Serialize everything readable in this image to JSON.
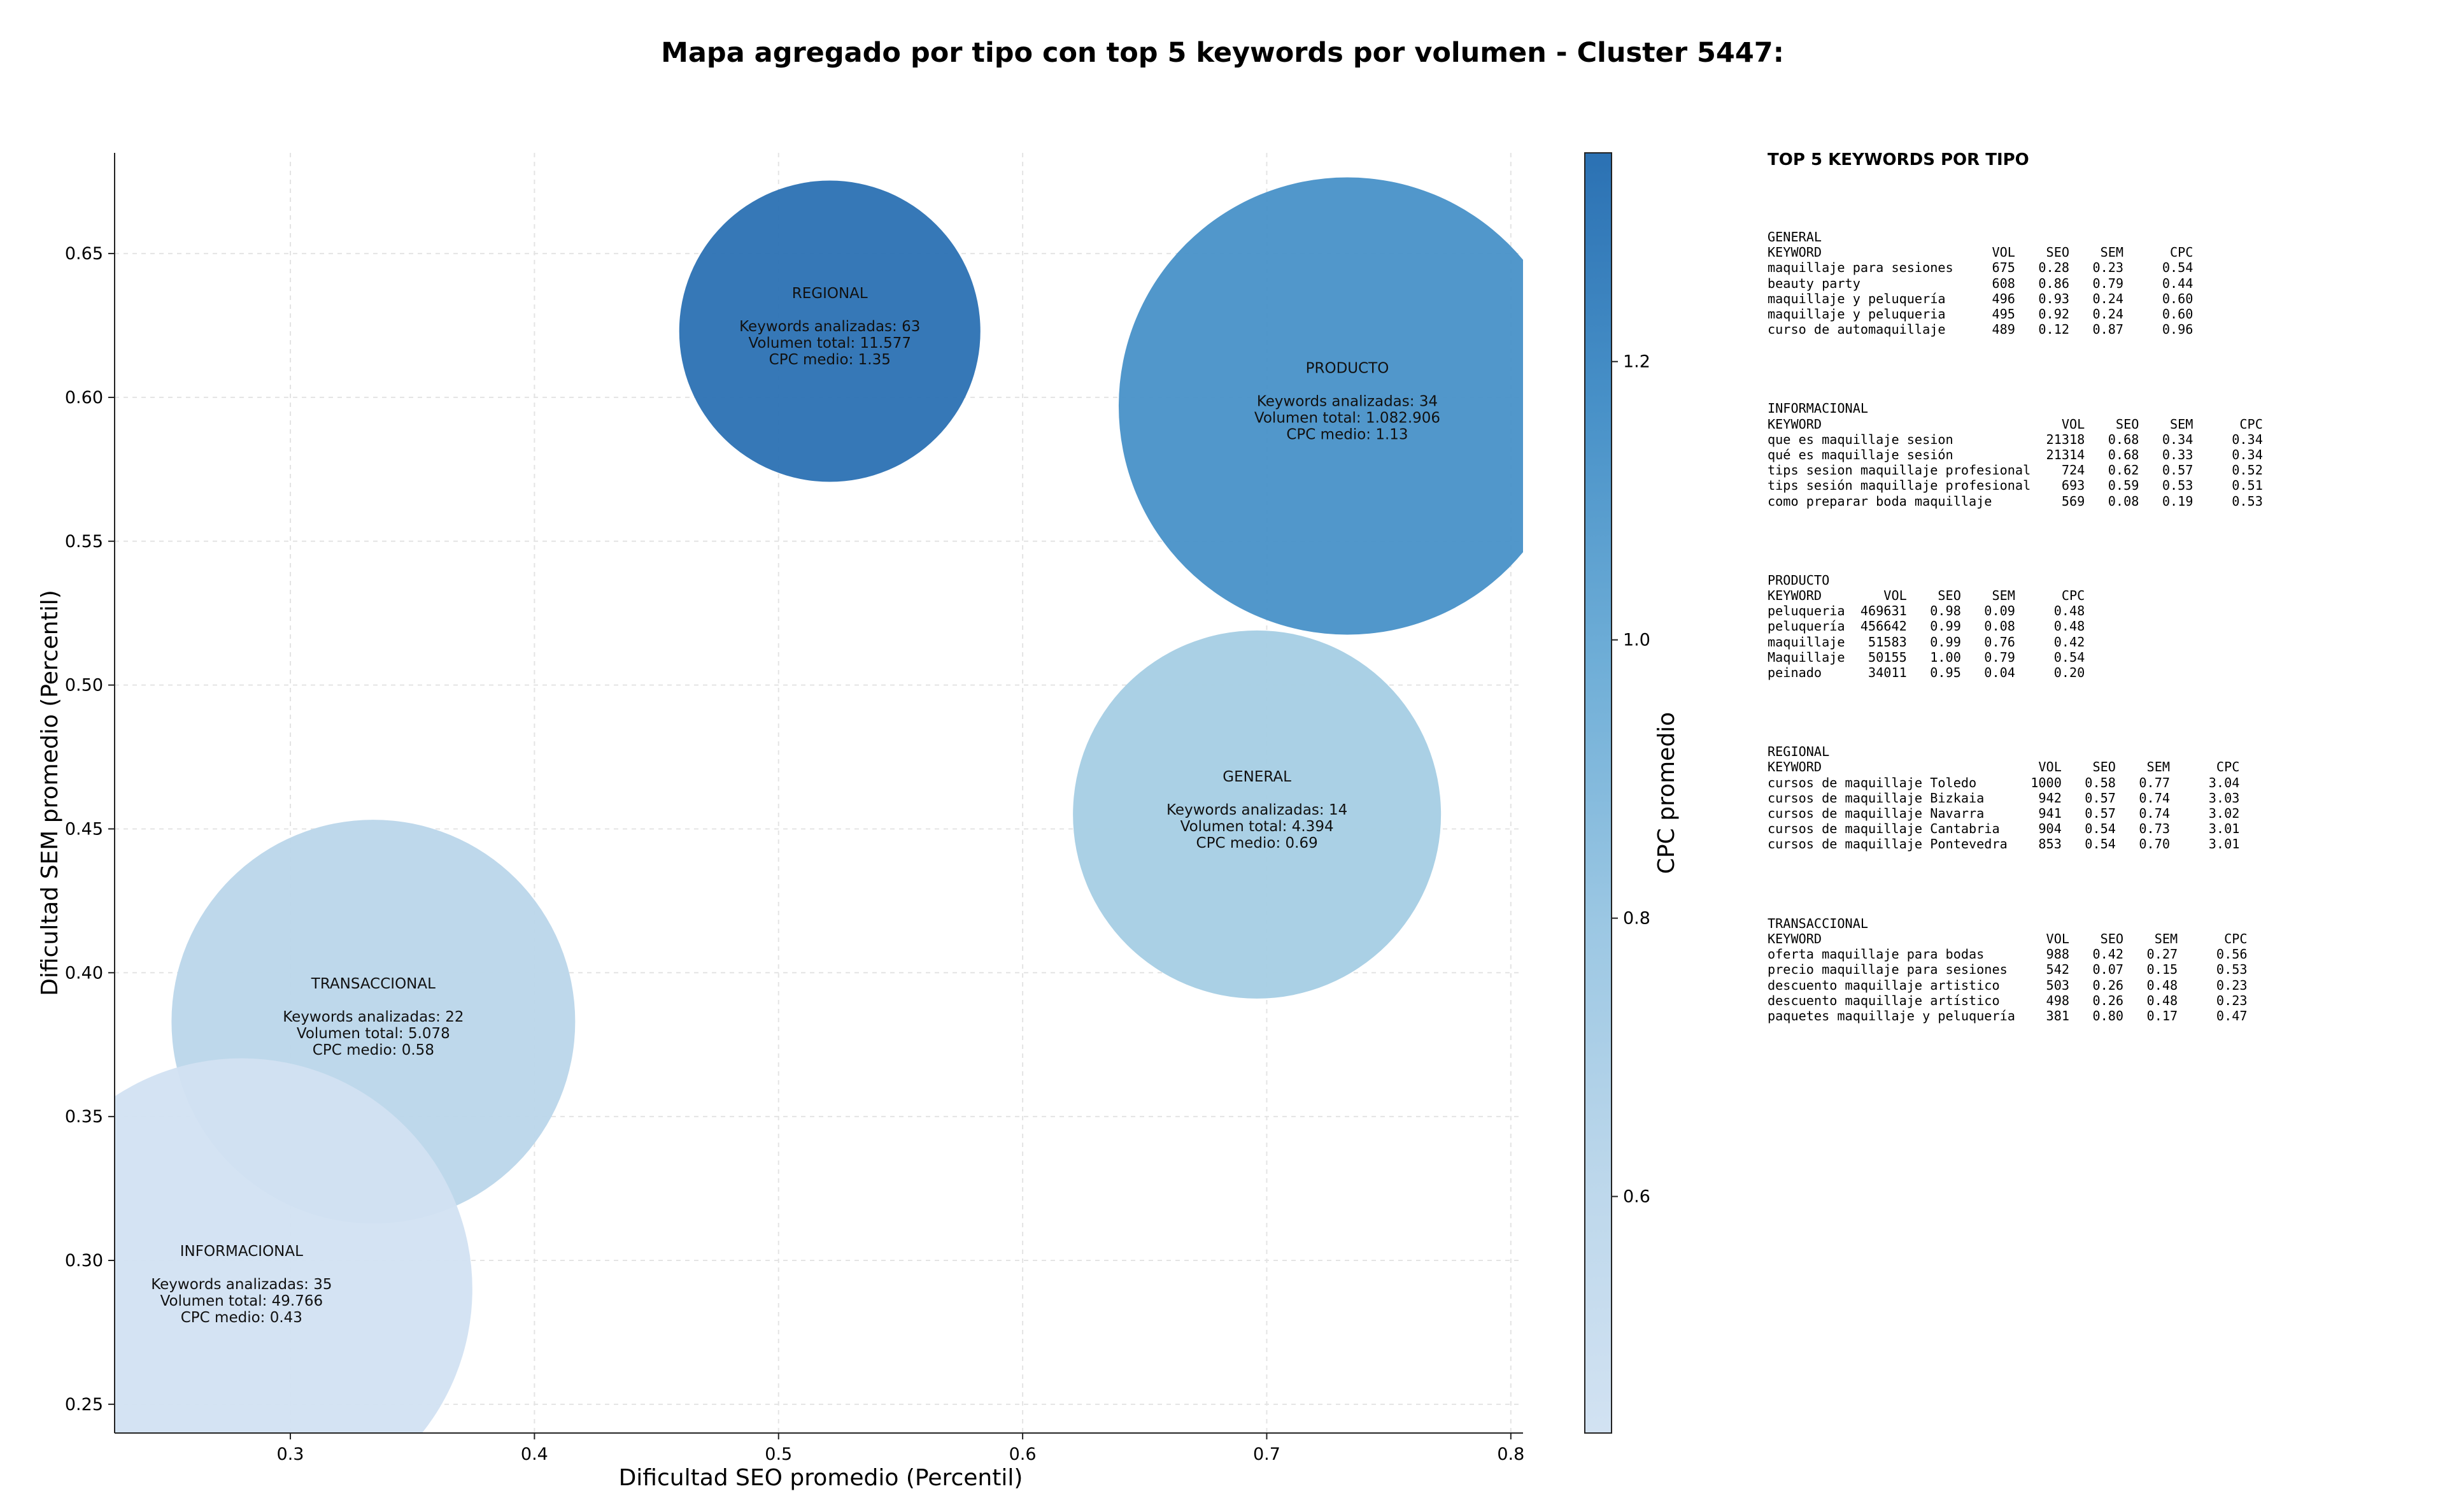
{
  "chart_data": {
    "type": "scatter",
    "title": "Mapa agregado por tipo con top 5 keywords por volumen - Cluster 5447:",
    "xlabel": "Dificultad SEO promedio (Percentil)",
    "ylabel": "Dificultad SEM promedio (Percentil)",
    "xlim": [
      0.228,
      0.805
    ],
    "ylim": [
      0.24,
      0.685
    ],
    "xticks": [
      0.3,
      0.4,
      0.5,
      0.6,
      0.7,
      0.8
    ],
    "yticks": [
      0.25,
      0.3,
      0.35,
      0.4,
      0.45,
      0.5,
      0.55,
      0.6,
      0.65
    ],
    "grid": true,
    "colorbar": {
      "label": "CPC promedio",
      "min": 0.43,
      "max": 1.35,
      "ticks": [
        0.6,
        0.8,
        1.0,
        1.2
      ],
      "colors": [
        "#d2e2f2",
        "#bcd7eb",
        "#9bc7e3",
        "#6faed7",
        "#4891c8",
        "#2b71b3"
      ]
    },
    "points": [
      {
        "name": "REGIONAL",
        "x": 0.521,
        "y": 0.623,
        "cpc": 1.35,
        "keywords": 63,
        "volume": 11577,
        "line1": "Keywords analizadas: 63",
        "line2": "Volumen total: 11.577",
        "line3": "CPC medio: 1.35",
        "color": "#2b71b3"
      },
      {
        "name": "PRODUCTO",
        "x": 0.733,
        "y": 0.597,
        "cpc": 1.13,
        "keywords": 34,
        "volume": 1082906,
        "line1": "Keywords analizadas: 34",
        "line2": "Volumen total: 1.082.906",
        "line3": "CPC medio: 1.13",
        "color": "#4891c8"
      },
      {
        "name": "GENERAL",
        "x": 0.696,
        "y": 0.455,
        "cpc": 0.69,
        "keywords": 14,
        "volume": 4394,
        "line1": "Keywords analizadas: 14",
        "line2": "Volumen total: 4.394",
        "line3": "CPC medio: 0.69",
        "color": "#a5cde4"
      },
      {
        "name": "TRANSACCIONAL",
        "x": 0.334,
        "y": 0.383,
        "cpc": 0.58,
        "keywords": 22,
        "volume": 5078,
        "line1": "Keywords analizadas: 22",
        "line2": "Volumen total: 5.078",
        "line3": "CPC medio: 0.58",
        "color": "#bad6ea"
      },
      {
        "name": "INFORMACIONAL",
        "x": 0.28,
        "y": 0.29,
        "cpc": 0.43,
        "keywords": 35,
        "volume": 49766,
        "line1": "Keywords analizadas: 35",
        "line2": "Volumen total: 49.766",
        "line3": "CPC medio: 0.43",
        "color": "#d2e2f2"
      }
    ]
  },
  "side_panel": {
    "heading": "TOP 5 KEYWORDS POR TIPO",
    "blocks": [
      {
        "name": "GENERAL",
        "text": "GENERAL\nKEYWORD                      VOL    SEO    SEM      CPC\nmaquillaje para sesiones     675   0.28   0.23     0.54\nbeauty party                 608   0.86   0.79     0.44\nmaquillaje y peluquería      496   0.93   0.24     0.60\nmaquillaje y peluqueria      495   0.92   0.24     0.60\ncurso de automaquillaje      489   0.12   0.87     0.96"
      },
      {
        "name": "INFORMACIONAL",
        "text": "INFORMACIONAL\nKEYWORD                               VOL    SEO    SEM      CPC\nque es maquillaje sesion            21318   0.68   0.34     0.34\nqué es maquillaje sesión            21314   0.68   0.33     0.34\ntips sesion maquillaje profesional    724   0.62   0.57     0.52\ntips sesión maquillaje profesional    693   0.59   0.53     0.51\ncomo preparar boda maquillaje         569   0.08   0.19     0.53"
      },
      {
        "name": "PRODUCTO",
        "text": "PRODUCTO\nKEYWORD        VOL    SEO    SEM      CPC\npeluqueria  469631   0.98   0.09     0.48\npeluquería  456642   0.99   0.08     0.48\nmaquillaje   51583   0.99   0.76     0.42\nMaquillaje   50155   1.00   0.79     0.54\npeinado      34011   0.95   0.04     0.20"
      },
      {
        "name": "REGIONAL",
        "text": "REGIONAL\nKEYWORD                            VOL    SEO    SEM      CPC\ncursos de maquillaje Toledo       1000   0.58   0.77     3.04\ncursos de maquillaje Bizkaia       942   0.57   0.74     3.03\ncursos de maquillaje Navarra       941   0.57   0.74     3.02\ncursos de maquillaje Cantabria     904   0.54   0.73     3.01\ncursos de maquillaje Pontevedra    853   0.54   0.70     3.01"
      },
      {
        "name": "TRANSACCIONAL",
        "text": "TRANSACCIONAL\nKEYWORD                             VOL    SEO    SEM      CPC\noferta maquillaje para bodas        988   0.42   0.27     0.56\nprecio maquillaje para sesiones     542   0.07   0.15     0.53\ndescuento maquillaje artistico      503   0.26   0.48     0.23\ndescuento maquillaje artístico      498   0.26   0.48     0.23\npaquetes maquillaje y peluquería    381   0.80   0.17     0.47"
      }
    ]
  }
}
